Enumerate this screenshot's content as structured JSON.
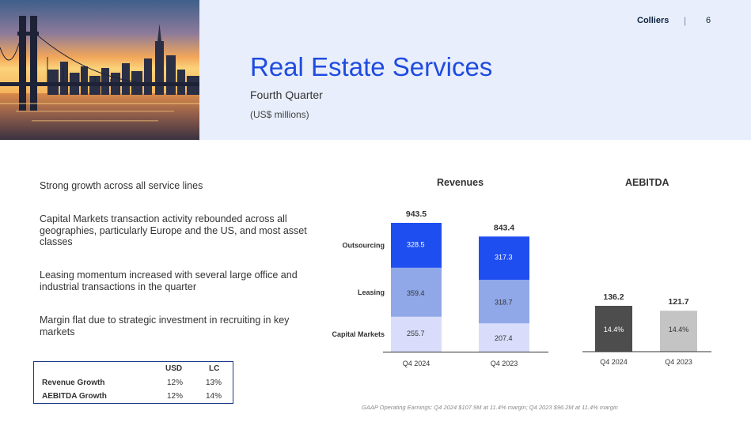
{
  "header": {
    "brand": "Colliers",
    "separator": "|",
    "page_number": "6",
    "title": "Real Estate Services",
    "subtitle": "Fourth Quarter",
    "units": "(US$ millions)"
  },
  "bullets": [
    "Strong growth across all service lines",
    "Capital Markets transaction activity rebounded across all geographies, particularly Europe and the US, and most asset classes",
    "Leasing momentum increased with several large office and industrial transactions in the quarter",
    "Margin flat due to strategic investment in recruiting in key markets"
  ],
  "growth_table": {
    "columns": [
      "USD",
      "LC"
    ],
    "rows": [
      {
        "label": "Revenue Growth",
        "usd": "12%",
        "lc": "13%"
      },
      {
        "label": "AEBITDA Growth",
        "usd": "12%",
        "lc": "14%"
      }
    ]
  },
  "colors": {
    "outsourcing": "#1f4ef0",
    "leasing": "#90a8e8",
    "capital_markets": "#d9dcfb",
    "aebitda_2024": "#4d4d4d",
    "aebitda_2023": "#c4c4c4",
    "title_blue": "#1f4be0"
  },
  "chart_data": [
    {
      "type": "bar",
      "stacked": true,
      "title": "Revenues",
      "categories": [
        "Q4 2024",
        "Q4 2023"
      ],
      "totals": [
        "943.5",
        "843.4"
      ],
      "series": [
        {
          "name": "Capital Markets",
          "values": [
            255.7,
            207.4
          ],
          "labels": [
            "255.7",
            "207.4"
          ]
        },
        {
          "name": "Leasing",
          "values": [
            359.4,
            318.7
          ],
          "labels": [
            "359.4",
            "318.7"
          ]
        },
        {
          "name": "Outsourcing",
          "values": [
            328.5,
            317.3
          ],
          "labels": [
            "328.5",
            "317.3"
          ]
        }
      ]
    },
    {
      "type": "bar",
      "title": "AEBITDA",
      "categories": [
        "Q4 2024",
        "Q4 2023"
      ],
      "values": [
        136.2,
        121.7
      ],
      "value_labels": [
        "136.2",
        "121.7"
      ],
      "margin_labels": [
        "14.4%",
        "14.4%"
      ]
    }
  ],
  "footnote": "GAAP Operating Earnings: Q4 2024 $107.9M at 11.4% margin; Q4 2023 $96.2M at 11.4% margin"
}
